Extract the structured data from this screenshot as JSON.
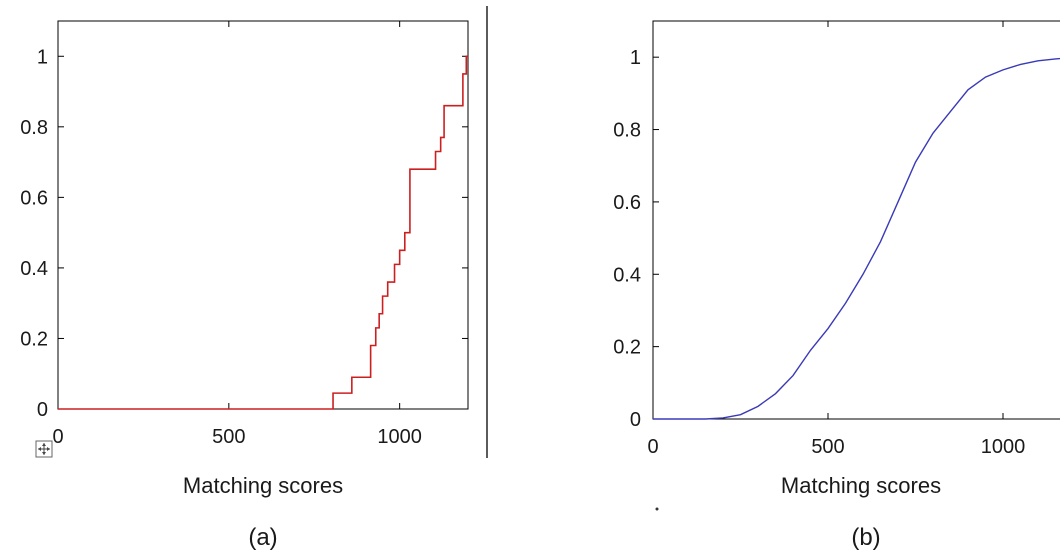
{
  "chart_data": [
    {
      "type": "line",
      "step": true,
      "panel_label": "(a)",
      "xlabel": "Matching scores",
      "ylabel": "",
      "xlim": [
        0,
        1200
      ],
      "ylim": [
        0,
        1.1
      ],
      "xticks": [
        0,
        500,
        1000
      ],
      "yticks": [
        0,
        0.2,
        0.4,
        0.6,
        0.8,
        1
      ],
      "xtick_labels": [
        "0",
        "500",
        "1000"
      ],
      "ytick_labels": [
        "0",
        "0.2",
        "0.4",
        "0.6",
        "0.8",
        "1"
      ],
      "grid": false,
      "color": "#cc2020",
      "series": [
        {
          "x": [
            0,
            805,
            805,
            860,
            860,
            915,
            915,
            930,
            930,
            940,
            940,
            950,
            950,
            965,
            965,
            985,
            985,
            1000,
            1000,
            1015,
            1015,
            1030,
            1030,
            1045,
            1045,
            1105,
            1105,
            1120,
            1120,
            1130,
            1130,
            1185,
            1185,
            1195,
            1195,
            1200
          ],
          "y": [
            0,
            0,
            0.045,
            0.045,
            0.09,
            0.09,
            0.18,
            0.18,
            0.23,
            0.23,
            0.27,
            0.27,
            0.32,
            0.32,
            0.36,
            0.36,
            0.41,
            0.41,
            0.45,
            0.45,
            0.5,
            0.5,
            0.68,
            0.68,
            0.68,
            0.68,
            0.73,
            0.73,
            0.77,
            0.77,
            0.86,
            0.86,
            0.95,
            0.95,
            1.0,
            1.0
          ]
        }
      ]
    },
    {
      "type": "line",
      "panel_label": "(b)",
      "xlabel": "Matching scores",
      "ylabel": "",
      "xlim": [
        0,
        1200
      ],
      "ylim": [
        0,
        1.1
      ],
      "xticks": [
        0,
        500,
        1000
      ],
      "yticks": [
        0,
        0.2,
        0.4,
        0.6,
        0.8,
        1
      ],
      "xtick_labels": [
        "0",
        "500",
        "1000"
      ],
      "ytick_labels": [
        "0",
        "0.2",
        "0.4",
        "0.6",
        "0.8",
        "1"
      ],
      "grid": false,
      "color": "#3a3ab8",
      "series": [
        {
          "x": [
            0,
            150,
            200,
            250,
            300,
            350,
            400,
            450,
            500,
            550,
            600,
            650,
            700,
            750,
            800,
            850,
            900,
            950,
            1000,
            1050,
            1100,
            1150,
            1200
          ],
          "y": [
            0,
            0,
            0.003,
            0.012,
            0.035,
            0.07,
            0.12,
            0.19,
            0.25,
            0.32,
            0.4,
            0.49,
            0.6,
            0.71,
            0.79,
            0.85,
            0.91,
            0.945,
            0.965,
            0.98,
            0.99,
            0.995,
            1.0
          ]
        }
      ]
    }
  ]
}
